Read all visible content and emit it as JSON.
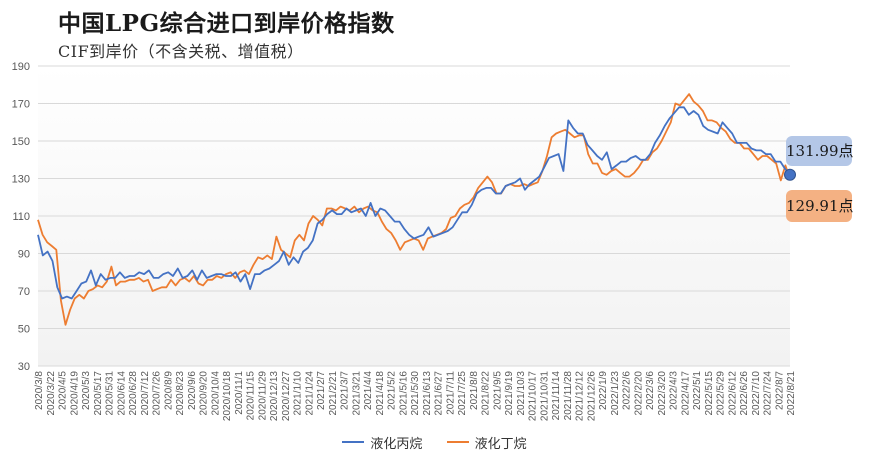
{
  "title": "中国LPG综合进口到岸价格指数",
  "subtitle": "CIF到岸价（不含关税、增值税）",
  "colors": {
    "propane": "#4472c4",
    "butane": "#ed7d31",
    "grid": "#d9d9d9",
    "endpoint": "#4472c4"
  },
  "callouts": {
    "propane": "131.99点",
    "butane": "129.91点"
  },
  "chart_data": {
    "type": "line",
    "ylim": [
      30,
      190
    ],
    "yticks": [
      30,
      50,
      70,
      90,
      110,
      130,
      150,
      170,
      190
    ],
    "grid": true,
    "legend_position": "bottom",
    "x_tick_labels": [
      "2020/3/8",
      "2020/3/22",
      "2020/4/5",
      "2020/4/19",
      "2020/5/3",
      "2020/5/17",
      "2020/5/31",
      "2020/6/14",
      "2020/6/28",
      "2020/7/12",
      "2020/7/26",
      "2020/8/9",
      "2020/8/23",
      "2020/9/6",
      "2020/9/20",
      "2020/10/4",
      "2020/10/18",
      "2020/11/1",
      "2020/11/15",
      "2020/11/29",
      "2020/12/13",
      "2020/12/27",
      "2021/1/10",
      "2021/1/24",
      "2021/2/7",
      "2021/2/21",
      "2021/3/7",
      "2021/3/21",
      "2021/4/4",
      "2021/4/18",
      "2021/5/2",
      "2021/5/16",
      "2021/5/30",
      "2021/6/13",
      "2021/6/27",
      "2021/7/11",
      "2021/7/25",
      "2021/8/8",
      "2021/8/22",
      "2021/9/5",
      "2021/9/19",
      "2021/10/3",
      "2021/10/17",
      "2021/10/31",
      "2021/11/14",
      "2021/11/28",
      "2021/12/12",
      "2021/12/26",
      "2022/1/9",
      "2022/1/23",
      "2022/2/6",
      "2022/2/20",
      "2022/3/6",
      "2022/3/20",
      "2022/4/3",
      "2022/4/17",
      "2022/5/1",
      "2022/5/15",
      "2022/5/29",
      "2022/6/12",
      "2022/6/26",
      "2022/7/10",
      "2022/7/24",
      "2022/8/7",
      "2022/8/21"
    ],
    "series": [
      {
        "name": "液化丙烷",
        "values": [
          100,
          89,
          91,
          86,
          72,
          66,
          67,
          66,
          70,
          74,
          75,
          81,
          73,
          79,
          76,
          77,
          77,
          80,
          77,
          78,
          78,
          80,
          79,
          81,
          77,
          77,
          79,
          80,
          78,
          82,
          77,
          78,
          81,
          76,
          81,
          77,
          78,
          79,
          79,
          78,
          78,
          80,
          75,
          79,
          71,
          79,
          79,
          81,
          82,
          84,
          86,
          91,
          84,
          88,
          85,
          91,
          93,
          97,
          106,
          108,
          111,
          113,
          111,
          111,
          114,
          112,
          113,
          114,
          110,
          117,
          110,
          114,
          113,
          110,
          107,
          107,
          103,
          100,
          98,
          99,
          100,
          104,
          99,
          100,
          101,
          102,
          104,
          108,
          112,
          112,
          116,
          122,
          124,
          125,
          125,
          122,
          122,
          126,
          127,
          128,
          130,
          124,
          127,
          129,
          131,
          136,
          141,
          142,
          143,
          134,
          161,
          157,
          154,
          154,
          148,
          145,
          142,
          140,
          144,
          135,
          137,
          139,
          139,
          141,
          142,
          140,
          140,
          143,
          149,
          153,
          158,
          162,
          165,
          168,
          168,
          164,
          166,
          164,
          158,
          156,
          155,
          154,
          160,
          157,
          154,
          149,
          149,
          149,
          146,
          145,
          145,
          143,
          143,
          139,
          139,
          135,
          131.99
        ]
      },
      {
        "name": "液化丁烷",
        "values": [
          108,
          100,
          96,
          94,
          92,
          65,
          52,
          60,
          66,
          68,
          66,
          70,
          71,
          73,
          72,
          75,
          83,
          73,
          75,
          75,
          76,
          76,
          77,
          75,
          76,
          70,
          71,
          72,
          72,
          76,
          73,
          76,
          77,
          75,
          78,
          74,
          73,
          76,
          76,
          78,
          77,
          79,
          80,
          77,
          80,
          81,
          79,
          84,
          88,
          87,
          89,
          87,
          99,
          92,
          90,
          88,
          97,
          100,
          97,
          106,
          110,
          108,
          105,
          114,
          114,
          113,
          115,
          114,
          113,
          115,
          112,
          114,
          115,
          113,
          112,
          107,
          103,
          101,
          97,
          92,
          96,
          97,
          98,
          97,
          92,
          98,
          99,
          100,
          101,
          103,
          109,
          110,
          114,
          116,
          117,
          120,
          125,
          128,
          131,
          128,
          122,
          122,
          126,
          127,
          126,
          126,
          127,
          126,
          127,
          128,
          134,
          142,
          152,
          154,
          155,
          156,
          154,
          152,
          153,
          153,
          143,
          138,
          138,
          133,
          132,
          134,
          135,
          133,
          131,
          131,
          133,
          136,
          140,
          140,
          144,
          146,
          150,
          155,
          160,
          170,
          169,
          172,
          175,
          171,
          169,
          166,
          161,
          161,
          160,
          157,
          155,
          151,
          149,
          149,
          146,
          146,
          143,
          140,
          142,
          142,
          140,
          138,
          129,
          137,
          129.91
        ]
      }
    ]
  }
}
